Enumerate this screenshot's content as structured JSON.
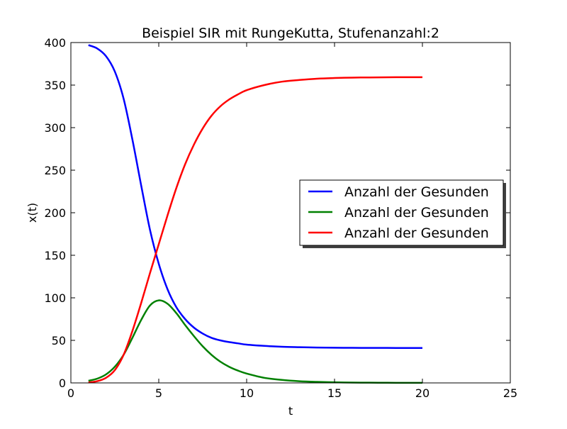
{
  "chart_data": {
    "type": "line",
    "title": "Beispiel SIR mit RungeKutta, Stufenanzahl:2",
    "xlabel": "t",
    "ylabel": "x(t)",
    "xlim": [
      0,
      25
    ],
    "ylim": [
      0,
      400
    ],
    "xticks": [
      0,
      5,
      10,
      15,
      20,
      25
    ],
    "yticks": [
      0,
      50,
      100,
      150,
      200,
      250,
      300,
      350,
      400
    ],
    "grid": false,
    "legend_position": "center-right",
    "x": [
      1,
      1.5,
      2,
      2.5,
      3,
      3.5,
      4,
      4.5,
      5,
      5.5,
      6,
      6.5,
      7,
      7.5,
      8,
      8.5,
      9,
      9.5,
      10,
      11,
      12,
      13,
      14,
      15,
      16,
      17,
      18,
      19,
      20
    ],
    "series": [
      {
        "name": "Anzahl der Gesunden",
        "color": "#0000ff",
        "values": [
          397,
          393,
          384,
          366,
          334,
          286,
          232,
          180,
          140,
          110,
          89,
          75,
          65,
          58,
          53,
          50,
          48,
          46.5,
          45,
          43.5,
          42.5,
          42,
          41.6,
          41.4,
          41.2,
          41.1,
          41.1,
          41,
          41
        ]
      },
      {
        "name": "Anzahl der Gesunden",
        "color": "#008000",
        "values": [
          2.5,
          5,
          10,
          19,
          33,
          53,
          74,
          91,
          97,
          93,
          82,
          68,
          55,
          43,
          33,
          25,
          19,
          14.5,
          11,
          6,
          3.5,
          2,
          1.2,
          0.7,
          0.4,
          0.3,
          0.2,
          0.1,
          0.1
        ]
      },
      {
        "name": "Anzahl der Gesunden",
        "color": "#ff0000",
        "values": [
          0.5,
          2,
          6,
          15,
          33,
          61,
          94,
          129,
          163,
          197,
          229,
          257,
          280,
          299,
          314,
          325,
          333,
          339,
          344,
          350,
          354,
          356,
          357.5,
          358.3,
          358.8,
          359,
          359.2,
          359.3,
          359.3
        ]
      }
    ]
  }
}
